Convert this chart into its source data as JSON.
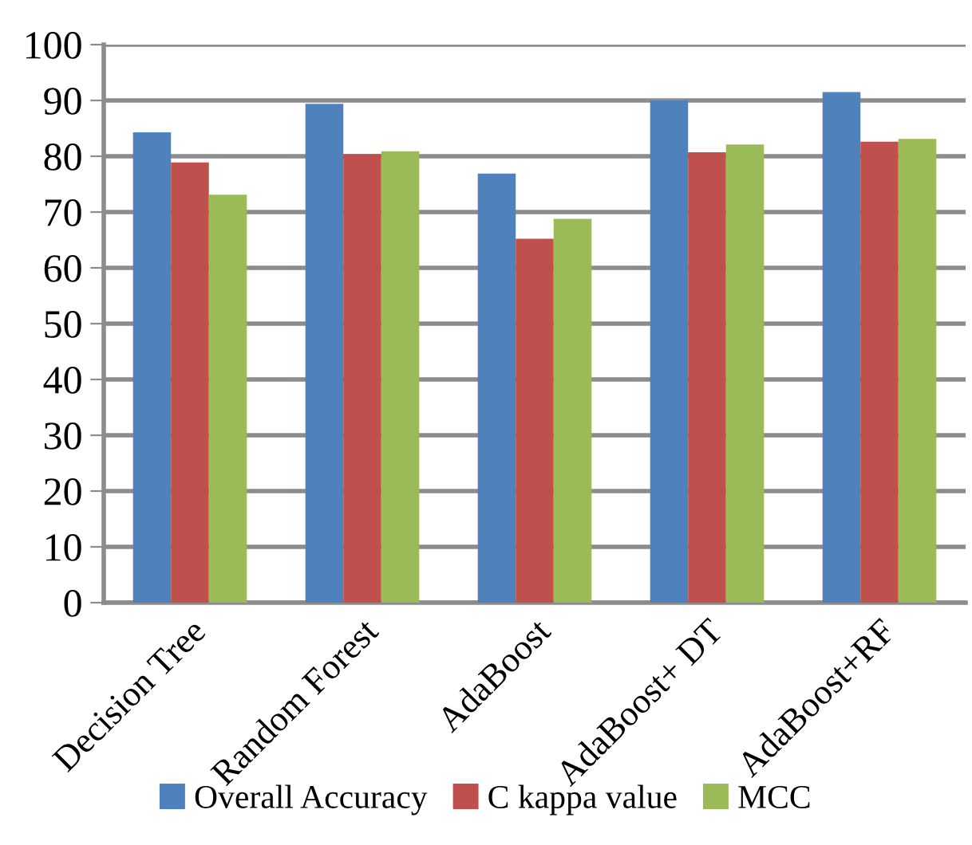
{
  "chart_data": {
    "type": "bar",
    "categories": [
      "Decision Tree",
      "Random Forest",
      "AdaBoost",
      "AdaBoost+ DT",
      "AdaBoost+RF"
    ],
    "series": [
      {
        "name": "Overall Accuracy",
        "color": "#4f81bd",
        "values": [
          84.3,
          89.4,
          76.9,
          90.0,
          91.5
        ]
      },
      {
        "name": "C kappa value",
        "color": "#c0504d",
        "values": [
          78.9,
          80.4,
          65.2,
          80.7,
          82.6
        ]
      },
      {
        "name": "MCC",
        "color": "#9bbb59",
        "values": [
          73.1,
          80.9,
          68.8,
          82.1,
          83.1
        ]
      }
    ],
    "ylim": [
      0,
      100
    ],
    "yticks": [
      0,
      10,
      20,
      30,
      40,
      50,
      60,
      70,
      80,
      90,
      100
    ],
    "grid": "y",
    "legend": "bottom"
  }
}
